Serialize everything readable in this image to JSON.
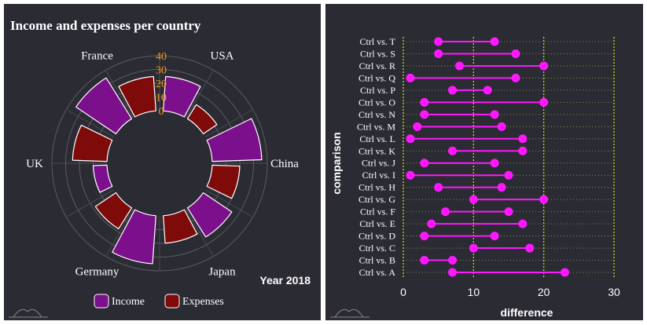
{
  "chart_data": [
    {
      "type": "polar-bar",
      "title": "Income and expenses per country",
      "annotation": "Year 2018",
      "categories": [
        "USA",
        "China",
        "Japan",
        "Germany",
        "UK",
        "France"
      ],
      "series": [
        {
          "name": "Income",
          "color": "#7b0f8c",
          "values": [
            25,
            36,
            25,
            35,
            10,
            35
          ]
        },
        {
          "name": "Expenses",
          "color": "#7f0a0a",
          "values": [
            12,
            20,
            20,
            18,
            25,
            25
          ]
        }
      ],
      "radial_ticks": [
        "0",
        "10",
        "20",
        "30",
        "40"
      ],
      "rlim": [
        0,
        40
      ],
      "legend": "bottom"
    },
    {
      "type": "dumbbell",
      "xlabel": "difference",
      "ylabel": "comparison",
      "xlim": [
        0,
        30
      ],
      "xticks": [
        0,
        10,
        20,
        30
      ],
      "marker_color": "#ff18ff",
      "gridline_color": "#d6e60a",
      "categories": [
        "Ctrl vs. A",
        "Ctrl vs. B",
        "Ctrl vs. C",
        "Ctrl vs. D",
        "Ctrl vs. E",
        "Ctrl vs. F",
        "Ctrl vs. G",
        "Ctrl vs. H",
        "Ctrl vs. I",
        "Ctrl vs. J",
        "Ctrl vs. K",
        "Ctrl vs. L",
        "Ctrl vs. M",
        "Ctrl vs. N",
        "Ctrl vs. O",
        "Ctrl vs. P",
        "Ctrl vs. Q",
        "Ctrl vs. R",
        "Ctrl vs. S",
        "Ctrl vs. T"
      ],
      "low": [
        7,
        3,
        10,
        3,
        4,
        6,
        10,
        5,
        1,
        3,
        7,
        1,
        2,
        3,
        3,
        7,
        1,
        8,
        5,
        5
      ],
      "high": [
        23,
        7,
        18,
        13,
        17,
        15,
        20,
        14,
        15,
        13,
        17,
        17,
        14,
        13,
        20,
        12,
        16,
        20,
        16,
        13
      ]
    }
  ]
}
